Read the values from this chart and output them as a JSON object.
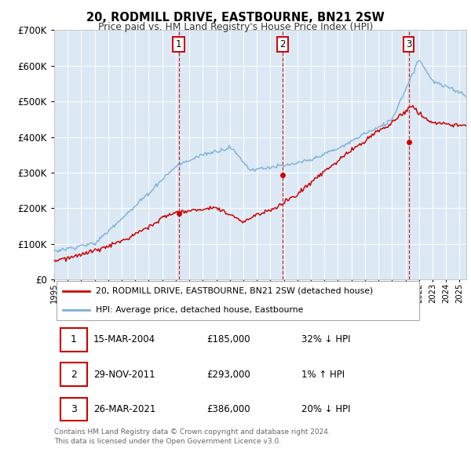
{
  "title": "20, RODMILL DRIVE, EASTBOURNE, BN21 2SW",
  "subtitle": "Price paid vs. HM Land Registry's House Price Index (HPI)",
  "ytick_values": [
    0,
    100000,
    200000,
    300000,
    400000,
    500000,
    600000,
    700000
  ],
  "ylim": [
    0,
    700000
  ],
  "plot_bg_color": "#dce9f5",
  "grid_color": "#ffffff",
  "sale_color": "#cc0000",
  "hpi_color": "#7bafd4",
  "transactions": [
    {
      "date": "2004-03-15",
      "price": 185000,
      "label": "1",
      "x": 2004.21
    },
    {
      "date": "2011-11-29",
      "price": 293000,
      "label": "2",
      "x": 2011.91
    },
    {
      "date": "2021-03-26",
      "price": 386000,
      "label": "3",
      "x": 2021.23
    }
  ],
  "legend_sale_label": "20, RODMILL DRIVE, EASTBOURNE, BN21 2SW (detached house)",
  "legend_hpi_label": "HPI: Average price, detached house, Eastbourne",
  "table_rows": [
    [
      "1",
      "15-MAR-2004",
      "£185,000",
      "32% ↓ HPI"
    ],
    [
      "2",
      "29-NOV-2011",
      "£293,000",
      "1% ↑ HPI"
    ],
    [
      "3",
      "26-MAR-2021",
      "£386,000",
      "20% ↓ HPI"
    ]
  ],
  "footnote": "Contains HM Land Registry data © Crown copyright and database right 2024.\nThis data is licensed under the Open Government Licence v3.0."
}
